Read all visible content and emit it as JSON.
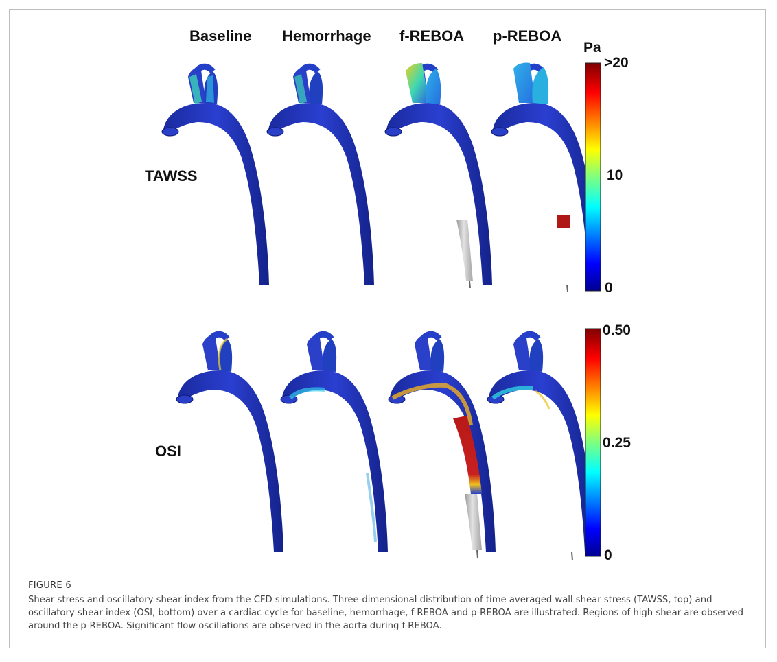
{
  "figure": {
    "column_titles": [
      "Baseline",
      "Hemorrhage",
      "f-REBOA",
      "p-REBOA"
    ],
    "rows": [
      {
        "label": "TAWSS",
        "colorbar": {
          "unit": "Pa",
          "max_label": ">20",
          "mid_label": "10",
          "min_label": "0"
        }
      },
      {
        "label": "OSI",
        "colorbar": {
          "unit": "",
          "max_label": "0.50",
          "mid_label": "0.25",
          "min_label": "0"
        }
      }
    ],
    "colors": {
      "aorta_low": "#1a2fb8",
      "aorta_dark": "#10208a",
      "balloon_grey": "#c8c8c8",
      "high_shear": "#b01818"
    }
  },
  "caption": {
    "label": "FIGURE 6",
    "text": "Shear stress and oscillatory shear index from the CFD simulations. Three-dimensional distribution of time averaged wall shear stress (TAWSS, top) and oscillatory shear index (OSI, bottom) over a cardiac cycle for baseline, hemorrhage, f-REBOA and p-REBOA are illustrated. Regions of high shear are observed around the p-REBOA. Significant flow oscillations are observed in the aorta during f-REBOA."
  }
}
